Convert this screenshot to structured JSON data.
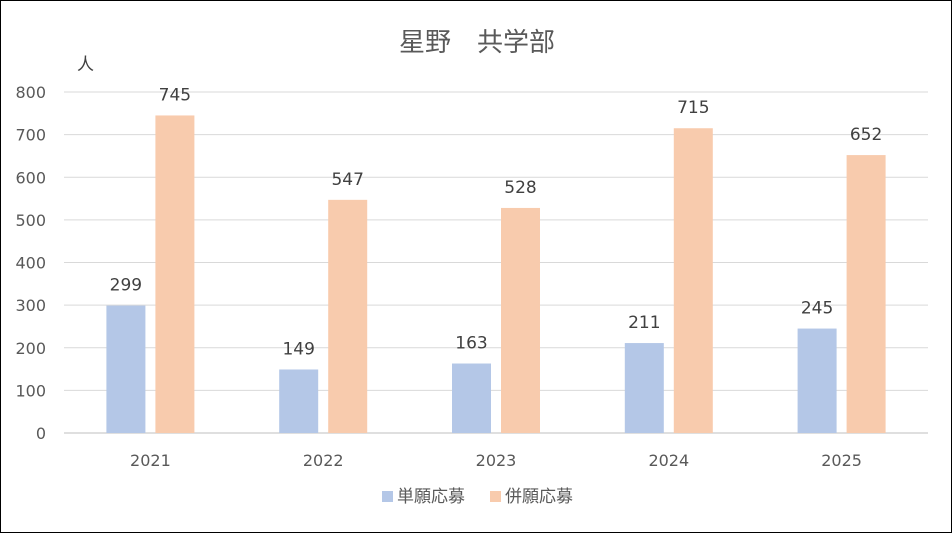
{
  "chart_data": {
    "type": "bar",
    "title": "星野　共学部",
    "ylabel": "人",
    "categories": [
      "2021",
      "2022",
      "2023",
      "2024",
      "2025"
    ],
    "series": [
      {
        "name": "単願応募",
        "values": [
          299,
          149,
          163,
          211,
          245
        ],
        "color": "#b4c7e7"
      },
      {
        "name": "併願応募",
        "values": [
          745,
          547,
          528,
          715,
          652
        ],
        "color": "#f8cbad"
      }
    ],
    "ylim": [
      0,
      800
    ],
    "yticks": [
      "0",
      "100",
      "200",
      "300",
      "400",
      "500",
      "600",
      "700",
      "800"
    ],
    "grid": true,
    "legend_position": "bottom"
  }
}
